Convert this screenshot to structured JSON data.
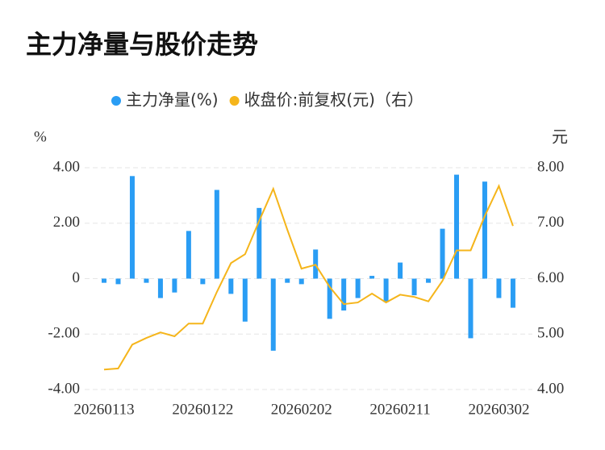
{
  "chart_data": {
    "type": "bar",
    "title": "主力净量与股价走势",
    "y_unit": "%",
    "y2_unit": "元",
    "categories": [
      "20260113",
      null,
      null,
      null,
      null,
      null,
      null,
      "20260122",
      null,
      null,
      null,
      null,
      null,
      null,
      "20260202",
      null,
      null,
      null,
      null,
      null,
      null,
      "20260211",
      null,
      null,
      null,
      null,
      null,
      null,
      "20260302",
      null
    ],
    "series": [
      {
        "name": "主力净量(%)",
        "type": "bar",
        "color": "#2a9df4",
        "values": [
          -0.15,
          -0.2,
          3.7,
          -0.15,
          -0.7,
          -0.5,
          1.72,
          -0.2,
          3.2,
          -0.55,
          -1.55,
          2.55,
          -2.6,
          -0.15,
          -0.2,
          1.05,
          -1.45,
          -1.15,
          -0.7,
          0.1,
          -0.85,
          0.58,
          -0.6,
          -0.15,
          1.8,
          3.75,
          -2.15,
          3.5,
          -0.7,
          -1.05
        ]
      },
      {
        "name": "收盘价:前复权(元)（右）",
        "type": "line",
        "axis": "y2",
        "color": "#f5b51b",
        "values": [
          4.36,
          4.38,
          4.81,
          4.93,
          5.03,
          4.96,
          5.19,
          5.19,
          5.76,
          6.28,
          6.44,
          7.04,
          7.62,
          6.88,
          6.18,
          6.25,
          5.85,
          5.54,
          5.57,
          5.73,
          5.57,
          5.71,
          5.67,
          5.59,
          5.96,
          6.51,
          6.51,
          7.13,
          7.67,
          6.95
        ]
      }
    ],
    "ylim": [
      -4,
      4
    ],
    "yticks": [
      {
        "value": -4,
        "label": "-4.00"
      },
      {
        "value": -2,
        "label": "-2.00"
      },
      0,
      {
        "value": 2,
        "label": "2.00"
      },
      {
        "value": 4,
        "label": "4.00"
      }
    ],
    "y2lim": [
      4,
      8
    ],
    "y2ticks": [
      {
        "value": 4,
        "label": "4.00"
      },
      {
        "value": 5,
        "label": "5.00"
      },
      {
        "value": 6,
        "label": "6.00"
      },
      {
        "value": 7,
        "label": "7.00"
      },
      {
        "value": 8,
        "label": "8.00"
      }
    ],
    "grid": true,
    "legend": "top"
  }
}
